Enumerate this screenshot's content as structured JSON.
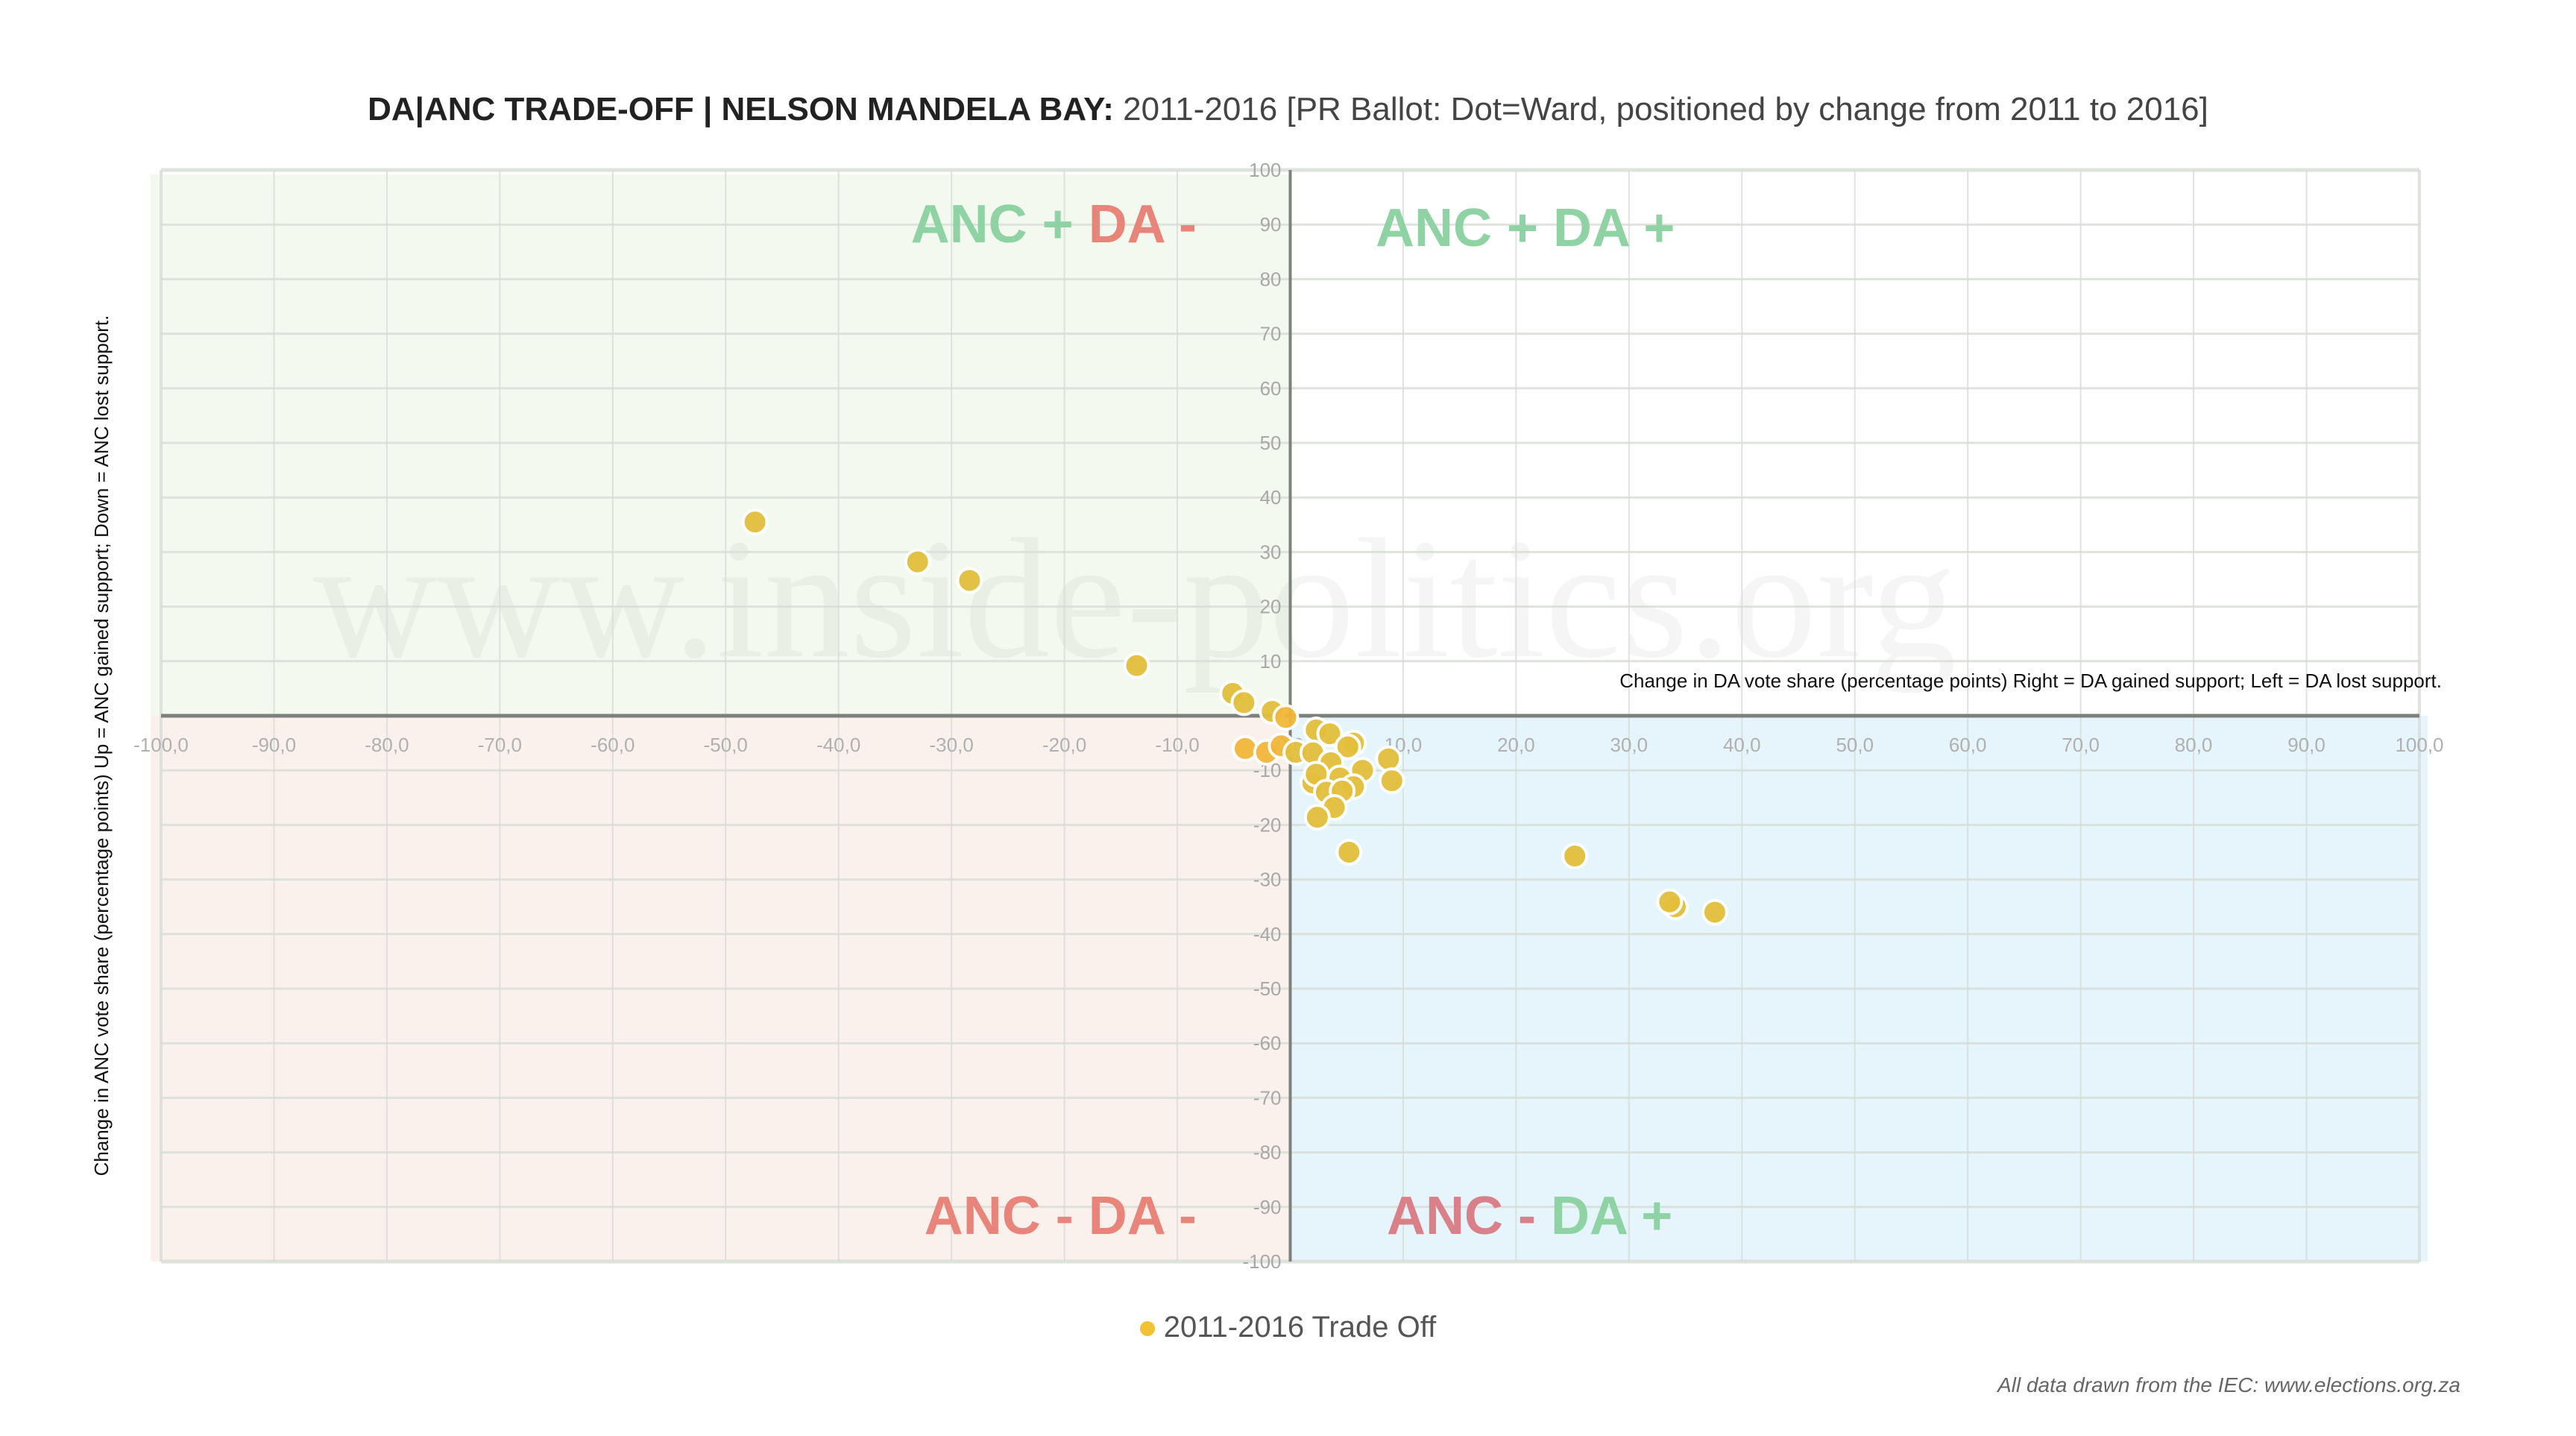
{
  "title": {
    "bold": "DA|ANC TRADE-OFF | NELSON MANDELA BAY:",
    "rest": " 2011-2016 [PR Ballot: Dot=Ward, positioned by change from 2011 to 2016]"
  },
  "watermark": "www.inside-politics.org",
  "credit": "All data drawn from the IEC: www.elections.org.za",
  "colors": {
    "point": "#e3bf3c",
    "point_left": "#f2b73a",
    "q_top_left": "#f3f9ee",
    "q_top_right": "#ffffff",
    "q_bottom_left": "#faf1ec",
    "q_bottom_right": "#e6f5fb",
    "label_green": "#8fd3a5",
    "label_red": "#e8847a",
    "label_red_anc": "#d98088"
  },
  "quadrant_labels": {
    "top_left": [
      {
        "t": "ANC + ",
        "c": "green"
      },
      {
        "t": "DA -",
        "c": "red"
      }
    ],
    "top_right": [
      {
        "t": "ANC + DA +",
        "c": "green"
      }
    ],
    "bottom_left": [
      {
        "t": "ANC - DA -",
        "c": "red"
      }
    ],
    "bottom_right": [
      {
        "t": "ANC - ",
        "c": "redanc"
      },
      {
        "t": "DA +",
        "c": "green"
      }
    ]
  },
  "chart_data": {
    "type": "scatter",
    "title": "DA|ANC TRADE-OFF | NELSON MANDELA BAY: 2011-2016 [PR Ballot: Dot=Ward, positioned by change from 2011 to 2016]",
    "xlabel": "Change in DA vote share (percentage points) Right = DA gained support; Left = DA lost support.",
    "ylabel": "Change in ANC vote share (percentage points) Up = ANC gained support; Down = ANC lost support.",
    "xlim": [
      -100,
      100
    ],
    "ylim": [
      -100,
      100
    ],
    "x_ticks": [
      "-100,0",
      "-90,0",
      "-80,0",
      "-70,0",
      "-60,0",
      "-50,0",
      "-40,0",
      "-30,0",
      "-20,0",
      "-10,0",
      "0,0",
      "10,0",
      "20,0",
      "30,0",
      "40,0",
      "50,0",
      "60,0",
      "70,0",
      "80,0",
      "90,0",
      "100,0"
    ],
    "y_ticks": [
      "100",
      "90",
      "80",
      "70",
      "60",
      "50",
      "40",
      "30",
      "20",
      "10",
      "0",
      "-10",
      "-20",
      "-30",
      "-40",
      "-50",
      "-60",
      "-70",
      "-80",
      "-90",
      "-100"
    ],
    "grid": true,
    "legend": {
      "position": "bottom",
      "entries": [
        "2011-2016 Trade Off"
      ]
    },
    "series": [
      {
        "name": "2011-2016 Trade Off",
        "points": [
          [
            -47.4,
            35.5
          ],
          [
            -33.0,
            28.2
          ],
          [
            -28.4,
            24.8
          ],
          [
            -13.6,
            9.2
          ],
          [
            -5.1,
            4.1
          ],
          [
            -4.1,
            2.4
          ],
          [
            -1.6,
            0.8
          ],
          [
            -0.4,
            -0.3
          ],
          [
            -4.0,
            -6.0
          ],
          [
            -2.1,
            -6.7
          ],
          [
            -0.8,
            -5.5
          ],
          [
            0.5,
            -6.7
          ],
          [
            2.3,
            -2.6
          ],
          [
            3.5,
            -3.3
          ],
          [
            5.6,
            -5.0
          ],
          [
            5.1,
            -5.7
          ],
          [
            2.0,
            -6.8
          ],
          [
            3.6,
            -8.6
          ],
          [
            6.4,
            -10.0
          ],
          [
            8.7,
            -7.9
          ],
          [
            9.0,
            -11.9
          ],
          [
            2.0,
            -12.3
          ],
          [
            2.3,
            -10.7
          ],
          [
            4.4,
            -11.4
          ],
          [
            5.6,
            -13.0
          ],
          [
            3.2,
            -14.0
          ],
          [
            4.6,
            -13.8
          ],
          [
            3.9,
            -16.8
          ],
          [
            2.4,
            -18.6
          ],
          [
            5.2,
            -25.0
          ],
          [
            25.2,
            -25.7
          ],
          [
            34.1,
            -35.0
          ],
          [
            33.6,
            -34.1
          ],
          [
            37.6,
            -36.0
          ]
        ]
      }
    ]
  }
}
